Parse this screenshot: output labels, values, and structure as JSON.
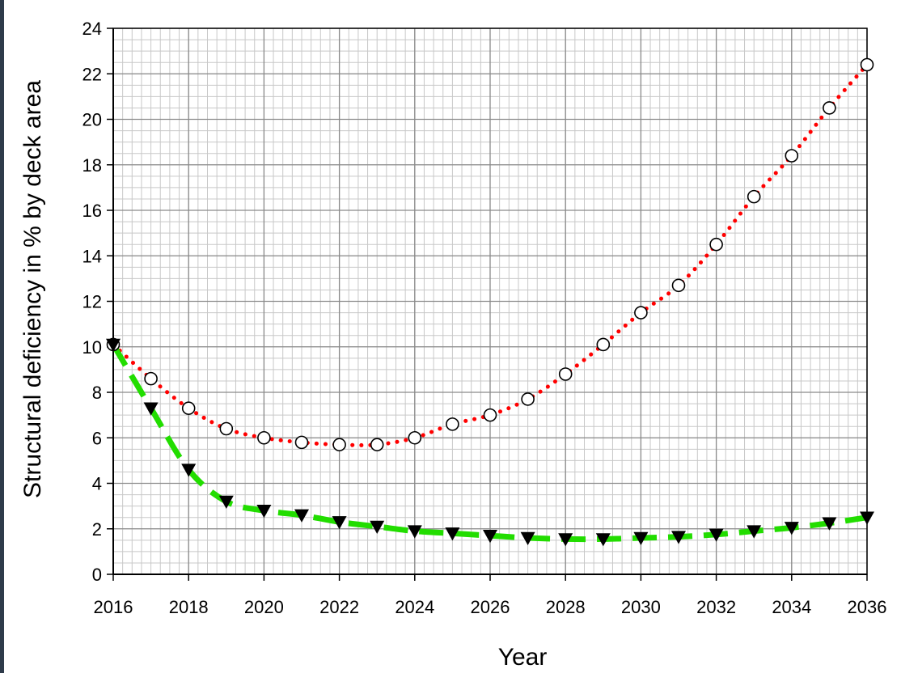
{
  "chart_data": {
    "type": "line",
    "title": "",
    "xlabel": "Year",
    "ylabel": "Structural deficiency in % by deck area",
    "xlim": [
      2016,
      2036
    ],
    "ylim": [
      0,
      24
    ],
    "x_ticks": [
      "2016",
      "2018",
      "2020",
      "2022",
      "2024",
      "2026",
      "2028",
      "2030",
      "2032",
      "2034",
      "2036"
    ],
    "y_ticks": [
      "0",
      "2",
      "4",
      "6",
      "8",
      "10",
      "12",
      "14",
      "16",
      "18",
      "20",
      "22",
      "24"
    ],
    "grid": true,
    "legend": "none",
    "series": [
      {
        "color": "#ff0000",
        "line_style": "dotted",
        "marker": "open-circle",
        "x": [
          2016,
          2017,
          2018,
          2019,
          2020,
          2021,
          2022,
          2023,
          2024,
          2025,
          2026,
          2027,
          2028,
          2029,
          2030,
          2031,
          2032,
          2033,
          2034,
          2035,
          2036
        ],
        "y": [
          10.1,
          8.6,
          7.3,
          6.4,
          6.0,
          5.8,
          5.7,
          5.7,
          6.0,
          6.6,
          7.0,
          7.7,
          8.8,
          10.1,
          11.5,
          12.7,
          14.5,
          16.6,
          18.4,
          20.5,
          22.4
        ]
      },
      {
        "color": "#22dd00",
        "line_style": "dashed",
        "marker": "filled-down-triangle",
        "x": [
          2016,
          2017,
          2018,
          2019,
          2020,
          2021,
          2022,
          2023,
          2024,
          2025,
          2026,
          2027,
          2028,
          2029,
          2030,
          2031,
          2032,
          2033,
          2034,
          2035,
          2036
        ],
        "y": [
          10.1,
          7.3,
          4.6,
          3.2,
          2.8,
          2.6,
          2.3,
          2.1,
          1.9,
          1.8,
          1.7,
          1.6,
          1.55,
          1.55,
          1.6,
          1.65,
          1.75,
          1.9,
          2.05,
          2.25,
          2.5
        ]
      }
    ]
  }
}
